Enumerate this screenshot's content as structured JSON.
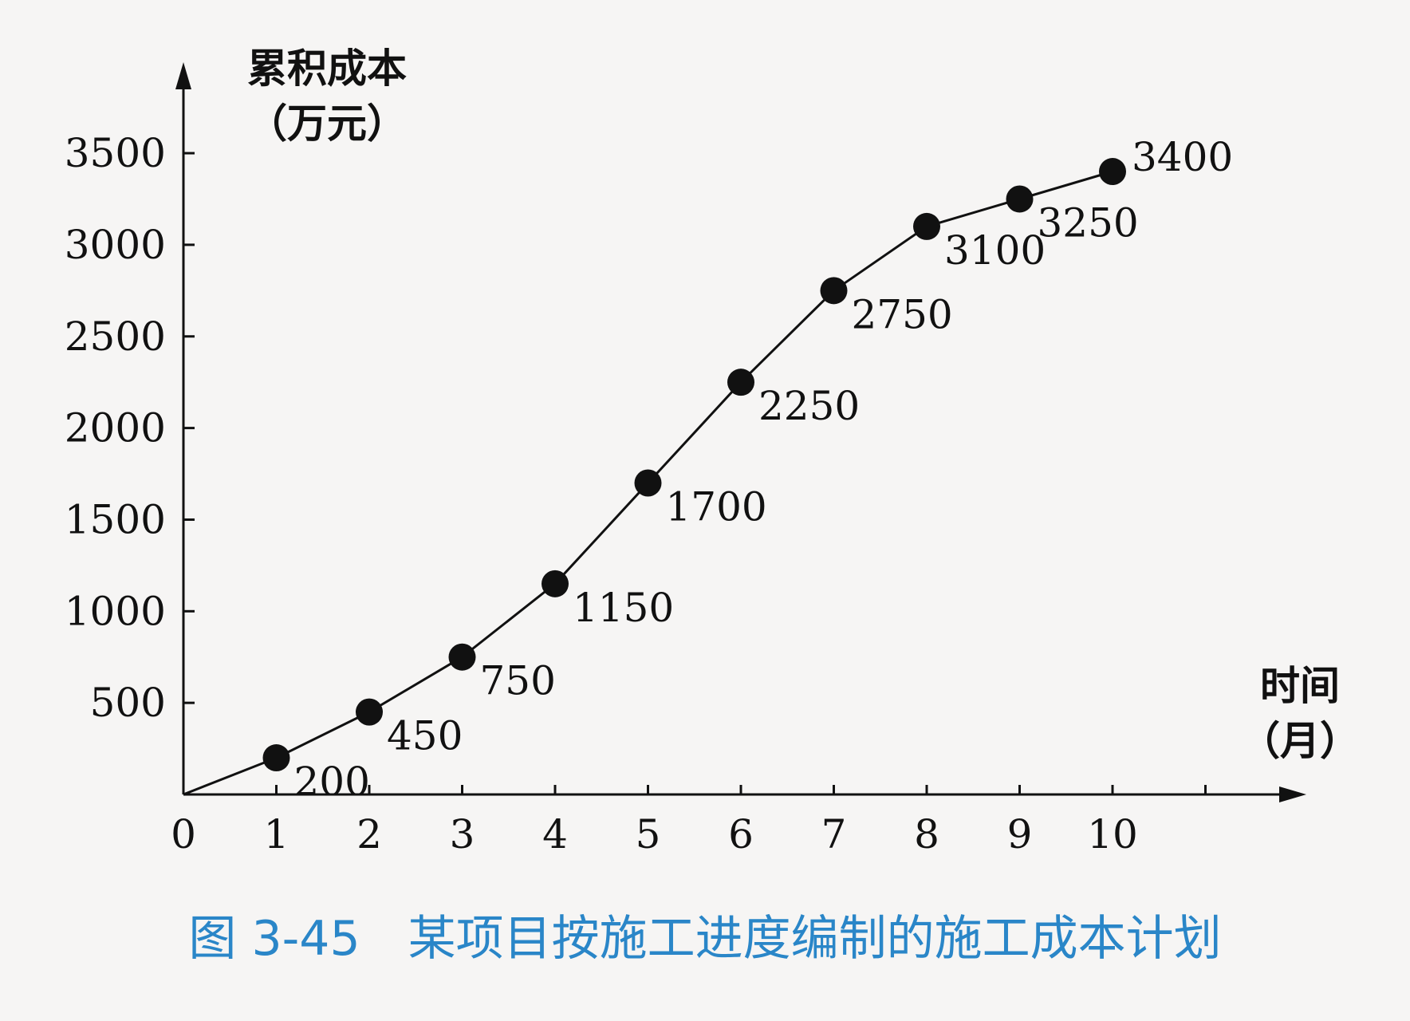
{
  "chart_data": {
    "type": "line",
    "title": "",
    "ylabel_line1": "累积成本",
    "ylabel_line2": "（万元）",
    "xlabel_line1": "时间",
    "xlabel_line2": "（月）",
    "x": [
      1,
      2,
      3,
      4,
      5,
      6,
      7,
      8,
      9,
      10
    ],
    "values": [
      200,
      450,
      750,
      1150,
      1700,
      2250,
      2750,
      3100,
      3250,
      3400
    ],
    "data_labels": [
      "200",
      "450",
      "750",
      "1150",
      "1700",
      "2250",
      "2750",
      "3100",
      "3250",
      "3400"
    ],
    "xticks": [
      "0",
      "1",
      "2",
      "3",
      "4",
      "5",
      "6",
      "7",
      "8",
      "9",
      "10"
    ],
    "yticks": [
      "500",
      "1000",
      "1500",
      "2000",
      "2500",
      "3000",
      "3500"
    ],
    "xlim": [
      0,
      12
    ],
    "ylim": [
      0,
      4000
    ],
    "grid": false,
    "legend": "none",
    "line_color": "#111111",
    "caption_color": "#2a86c8"
  },
  "caption": "图 3-45　某项目按施工进度编制的施工成本计划"
}
